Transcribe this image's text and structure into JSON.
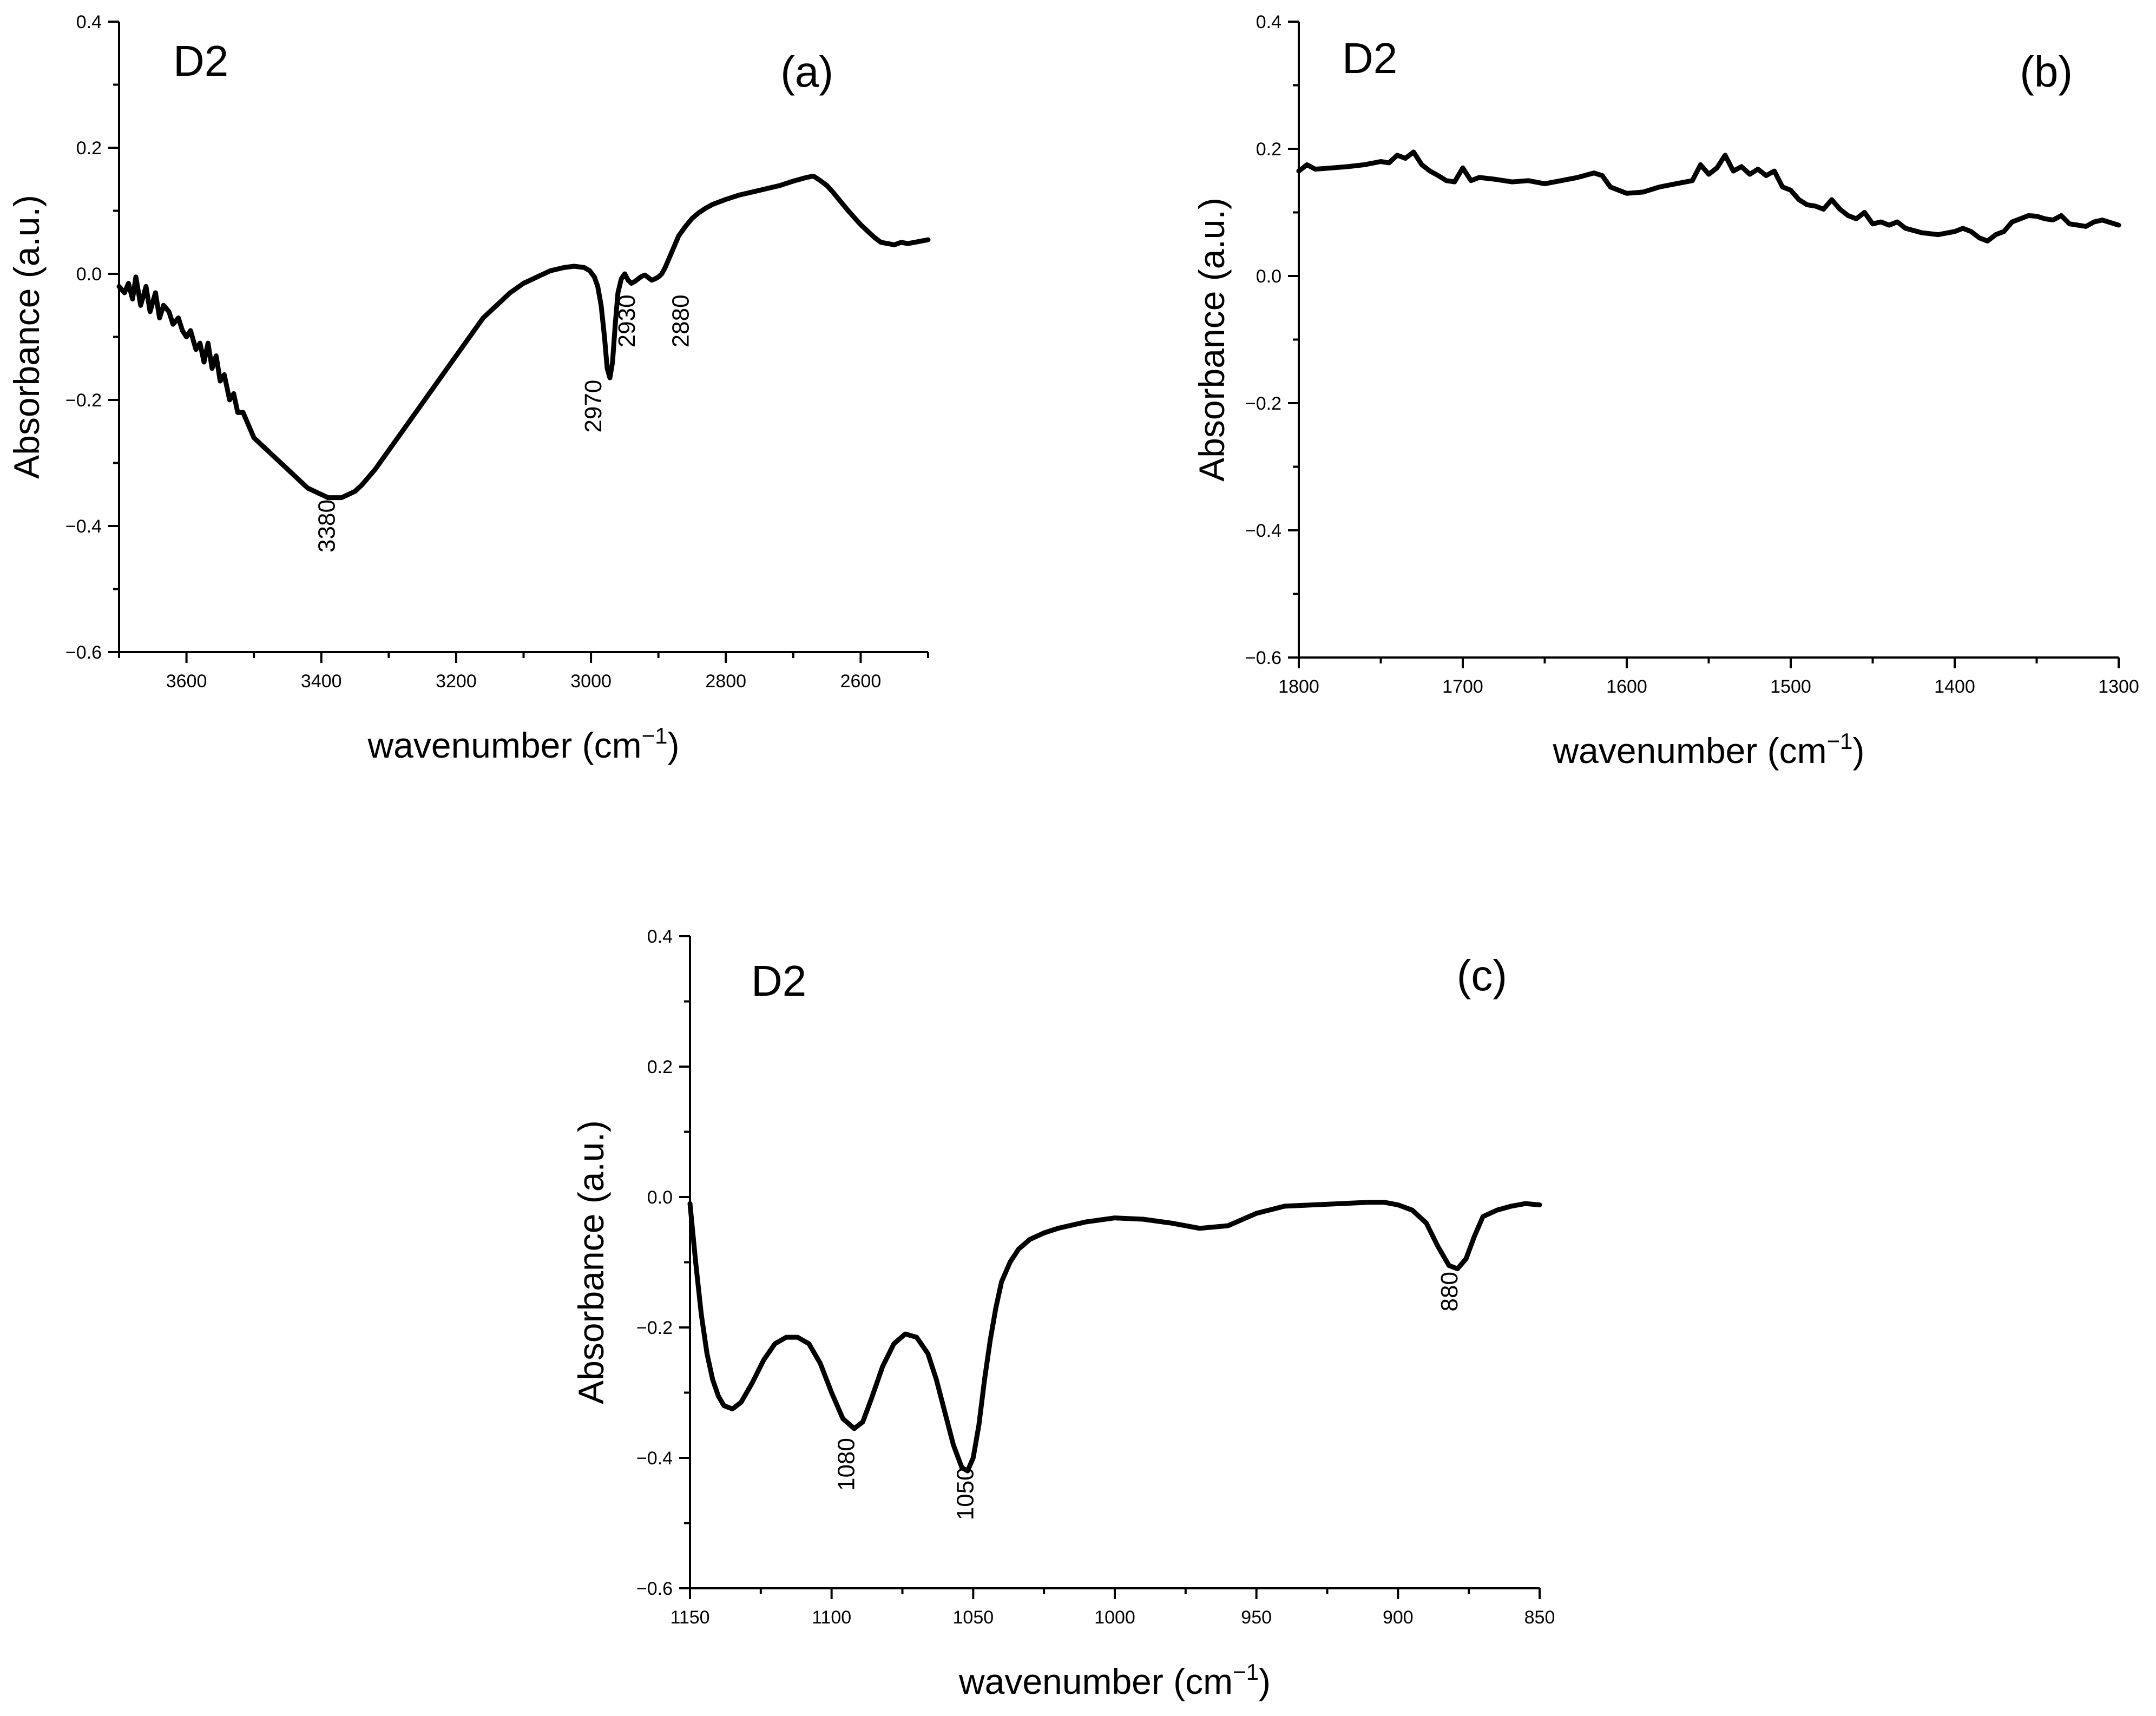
{
  "figure": {
    "panels": [
      "a",
      "b",
      "c"
    ]
  },
  "chart_data": [
    {
      "id": "a",
      "type": "line",
      "panel_label": "(a)",
      "sample_label": "D2",
      "xlabel": "wavenumber (cm",
      "xlabel_sup": "−1",
      "xlabel_end": ")",
      "ylabel": "Absorbance (a.u.)",
      "xlim": [
        3700,
        2500
      ],
      "ylim": [
        -0.6,
        0.4
      ],
      "xticks": [
        3600,
        3400,
        3200,
        3000,
        2800,
        2600
      ],
      "yticks": [
        -0.6,
        -0.4,
        -0.2,
        0.0,
        0.2,
        0.4
      ],
      "ytick_labels": [
        "−0.6",
        "−0.4",
        "−0.2",
        "0.0",
        "0.2",
        "0.4"
      ],
      "x": [
        3700,
        3692,
        3686,
        3680,
        3675,
        3668,
        3660,
        3654,
        3646,
        3640,
        3634,
        3626,
        3620,
        3612,
        3606,
        3600,
        3594,
        3586,
        3580,
        3574,
        3568,
        3562,
        3556,
        3550,
        3544,
        3536,
        3530,
        3524,
        3516,
        3508,
        3500,
        3490,
        3480,
        3470,
        3460,
        3450,
        3440,
        3430,
        3420,
        3410,
        3400,
        3390,
        3380,
        3370,
        3360,
        3350,
        3340,
        3320,
        3300,
        3280,
        3260,
        3240,
        3220,
        3200,
        3180,
        3160,
        3140,
        3120,
        3100,
        3080,
        3060,
        3040,
        3025,
        3010,
        3002,
        2995,
        2990,
        2985,
        2980,
        2976,
        2972,
        2968,
        2964,
        2960,
        2955,
        2950,
        2945,
        2940,
        2935,
        2930,
        2925,
        2920,
        2915,
        2910,
        2905,
        2900,
        2895,
        2890,
        2880,
        2870,
        2860,
        2850,
        2840,
        2830,
        2820,
        2810,
        2800,
        2780,
        2760,
        2740,
        2720,
        2700,
        2680,
        2670,
        2660,
        2650,
        2640,
        2630,
        2620,
        2610,
        2600,
        2590,
        2580,
        2570,
        2560,
        2550,
        2540,
        2530,
        2520,
        2510,
        2500
      ],
      "values": [
        -0.02,
        -0.03,
        -0.015,
        -0.04,
        -0.005,
        -0.05,
        -0.02,
        -0.06,
        -0.03,
        -0.07,
        -0.05,
        -0.06,
        -0.08,
        -0.07,
        -0.09,
        -0.1,
        -0.09,
        -0.12,
        -0.11,
        -0.14,
        -0.11,
        -0.15,
        -0.13,
        -0.17,
        -0.16,
        -0.2,
        -0.19,
        -0.22,
        -0.22,
        -0.24,
        -0.26,
        -0.27,
        -0.28,
        -0.29,
        -0.3,
        -0.31,
        -0.32,
        -0.33,
        -0.34,
        -0.345,
        -0.35,
        -0.355,
        -0.355,
        -0.355,
        -0.35,
        -0.345,
        -0.335,
        -0.31,
        -0.28,
        -0.25,
        -0.22,
        -0.19,
        -0.16,
        -0.13,
        -0.1,
        -0.07,
        -0.05,
        -0.03,
        -0.015,
        -0.005,
        0.005,
        0.01,
        0.012,
        0.01,
        0.005,
        -0.005,
        -0.02,
        -0.05,
        -0.1,
        -0.15,
        -0.165,
        -0.14,
        -0.08,
        -0.03,
        -0.008,
        0.0,
        -0.01,
        -0.015,
        -0.012,
        -0.008,
        -0.004,
        -0.002,
        -0.006,
        -0.01,
        -0.008,
        -0.005,
        0.0,
        0.01,
        0.035,
        0.06,
        0.075,
        0.088,
        0.097,
        0.104,
        0.11,
        0.114,
        0.118,
        0.125,
        0.13,
        0.135,
        0.14,
        0.147,
        0.153,
        0.155,
        0.148,
        0.14,
        0.128,
        0.115,
        0.102,
        0.09,
        0.078,
        0.068,
        0.058,
        0.05,
        0.048,
        0.046,
        0.05,
        0.048,
        0.05,
        0.052,
        0.054
      ],
      "annotations": [
        {
          "text": "3380",
          "x": 3380,
          "y": -0.4,
          "rotate": true
        },
        {
          "text": "2970",
          "x": 2985,
          "y": -0.21,
          "rotate": true
        },
        {
          "text": "2930",
          "x": 2935,
          "y": -0.075,
          "rotate": true
        },
        {
          "text": "2880",
          "x": 2855,
          "y": -0.075,
          "rotate": true
        }
      ]
    },
    {
      "id": "b",
      "type": "line",
      "panel_label": "(b)",
      "sample_label": "D2",
      "xlabel": "wavenumber (cm",
      "xlabel_sup": "−1",
      "xlabel_end": ")",
      "ylabel": "Absorbance (a.u.)",
      "xlim": [
        1800,
        1300
      ],
      "ylim": [
        -0.6,
        0.4
      ],
      "xticks": [
        1800,
        1700,
        1600,
        1500,
        1400,
        1300
      ],
      "yticks": [
        -0.6,
        -0.4,
        -0.2,
        0.0,
        0.2,
        0.4
      ],
      "ytick_labels": [
        "−0.6",
        "−0.4",
        "−0.2",
        "0.0",
        "0.2",
        "0.4"
      ],
      "x": [
        1800,
        1795,
        1790,
        1780,
        1770,
        1760,
        1750,
        1745,
        1740,
        1735,
        1730,
        1725,
        1720,
        1715,
        1710,
        1705,
        1700,
        1695,
        1690,
        1680,
        1670,
        1660,
        1650,
        1640,
        1630,
        1620,
        1615,
        1610,
        1600,
        1590,
        1580,
        1570,
        1560,
        1555,
        1550,
        1545,
        1540,
        1535,
        1530,
        1525,
        1520,
        1515,
        1510,
        1505,
        1500,
        1495,
        1490,
        1485,
        1480,
        1475,
        1470,
        1465,
        1460,
        1455,
        1450,
        1445,
        1440,
        1435,
        1430,
        1420,
        1410,
        1400,
        1395,
        1390,
        1385,
        1380,
        1375,
        1370,
        1365,
        1360,
        1355,
        1350,
        1345,
        1340,
        1335,
        1330,
        1325,
        1320,
        1315,
        1310,
        1305,
        1300
      ],
      "values": [
        0.165,
        0.175,
        0.168,
        0.17,
        0.172,
        0.175,
        0.18,
        0.178,
        0.19,
        0.185,
        0.195,
        0.175,
        0.165,
        0.158,
        0.15,
        0.148,
        0.17,
        0.15,
        0.155,
        0.152,
        0.148,
        0.15,
        0.145,
        0.15,
        0.155,
        0.162,
        0.158,
        0.14,
        0.13,
        0.132,
        0.14,
        0.145,
        0.15,
        0.175,
        0.16,
        0.17,
        0.19,
        0.165,
        0.172,
        0.16,
        0.168,
        0.158,
        0.165,
        0.14,
        0.135,
        0.12,
        0.112,
        0.11,
        0.105,
        0.12,
        0.105,
        0.095,
        0.09,
        0.1,
        0.082,
        0.085,
        0.08,
        0.085,
        0.075,
        0.068,
        0.065,
        0.07,
        0.075,
        0.07,
        0.06,
        0.055,
        0.065,
        0.07,
        0.085,
        0.09,
        0.095,
        0.094,
        0.09,
        0.088,
        0.095,
        0.082,
        0.08,
        0.078,
        0.085,
        0.088,
        0.084,
        0.08
      ]
    },
    {
      "id": "c",
      "type": "line",
      "panel_label": "(c)",
      "sample_label": "D2",
      "xlabel": "wavenumber (cm",
      "xlabel_sup": "−1",
      "xlabel_end": ")",
      "ylabel": "Absorbance (a.u.)",
      "xlim": [
        1150,
        850
      ],
      "ylim": [
        -0.6,
        0.4
      ],
      "xticks": [
        1150,
        1100,
        1050,
        1000,
        950,
        900,
        850
      ],
      "yticks": [
        -0.6,
        -0.4,
        -0.2,
        0.0,
        0.2,
        0.4
      ],
      "ytick_labels": [
        "−0.6",
        "−0.4",
        "−0.2",
        "0.0",
        "0.2",
        "0.4"
      ],
      "x": [
        1150,
        1148,
        1146,
        1144,
        1142,
        1140,
        1138,
        1135,
        1132,
        1128,
        1124,
        1120,
        1116,
        1112,
        1108,
        1104,
        1100,
        1096,
        1092,
        1089,
        1086,
        1082,
        1078,
        1074,
        1070,
        1066,
        1063,
        1060,
        1057,
        1054,
        1052,
        1050,
        1048,
        1046,
        1044,
        1042,
        1040,
        1037,
        1034,
        1030,
        1025,
        1020,
        1010,
        1000,
        990,
        980,
        970,
        960,
        950,
        940,
        930,
        920,
        910,
        905,
        900,
        895,
        890,
        886,
        882,
        879,
        876,
        873,
        870,
        865,
        860,
        855,
        850
      ],
      "values": [
        -0.01,
        -0.1,
        -0.18,
        -0.24,
        -0.28,
        -0.305,
        -0.32,
        -0.325,
        -0.315,
        -0.285,
        -0.25,
        -0.225,
        -0.215,
        -0.215,
        -0.225,
        -0.255,
        -0.3,
        -0.34,
        -0.355,
        -0.345,
        -0.31,
        -0.26,
        -0.225,
        -0.21,
        -0.215,
        -0.24,
        -0.28,
        -0.33,
        -0.38,
        -0.415,
        -0.42,
        -0.4,
        -0.35,
        -0.28,
        -0.22,
        -0.17,
        -0.13,
        -0.1,
        -0.08,
        -0.065,
        -0.055,
        -0.048,
        -0.038,
        -0.032,
        -0.034,
        -0.04,
        -0.048,
        -0.044,
        -0.025,
        -0.014,
        -0.012,
        -0.01,
        -0.008,
        -0.008,
        -0.012,
        -0.02,
        -0.04,
        -0.075,
        -0.105,
        -0.11,
        -0.095,
        -0.06,
        -0.03,
        -0.02,
        -0.014,
        -0.01,
        -0.012
      ],
      "annotations": [
        {
          "text": "1080",
          "x": 1092,
          "y": -0.41,
          "rotate": true
        },
        {
          "text": "1050",
          "x": 1050,
          "y": -0.455,
          "rotate": true
        },
        {
          "text": "880",
          "x": 879,
          "y": -0.145,
          "rotate": true
        }
      ]
    }
  ]
}
